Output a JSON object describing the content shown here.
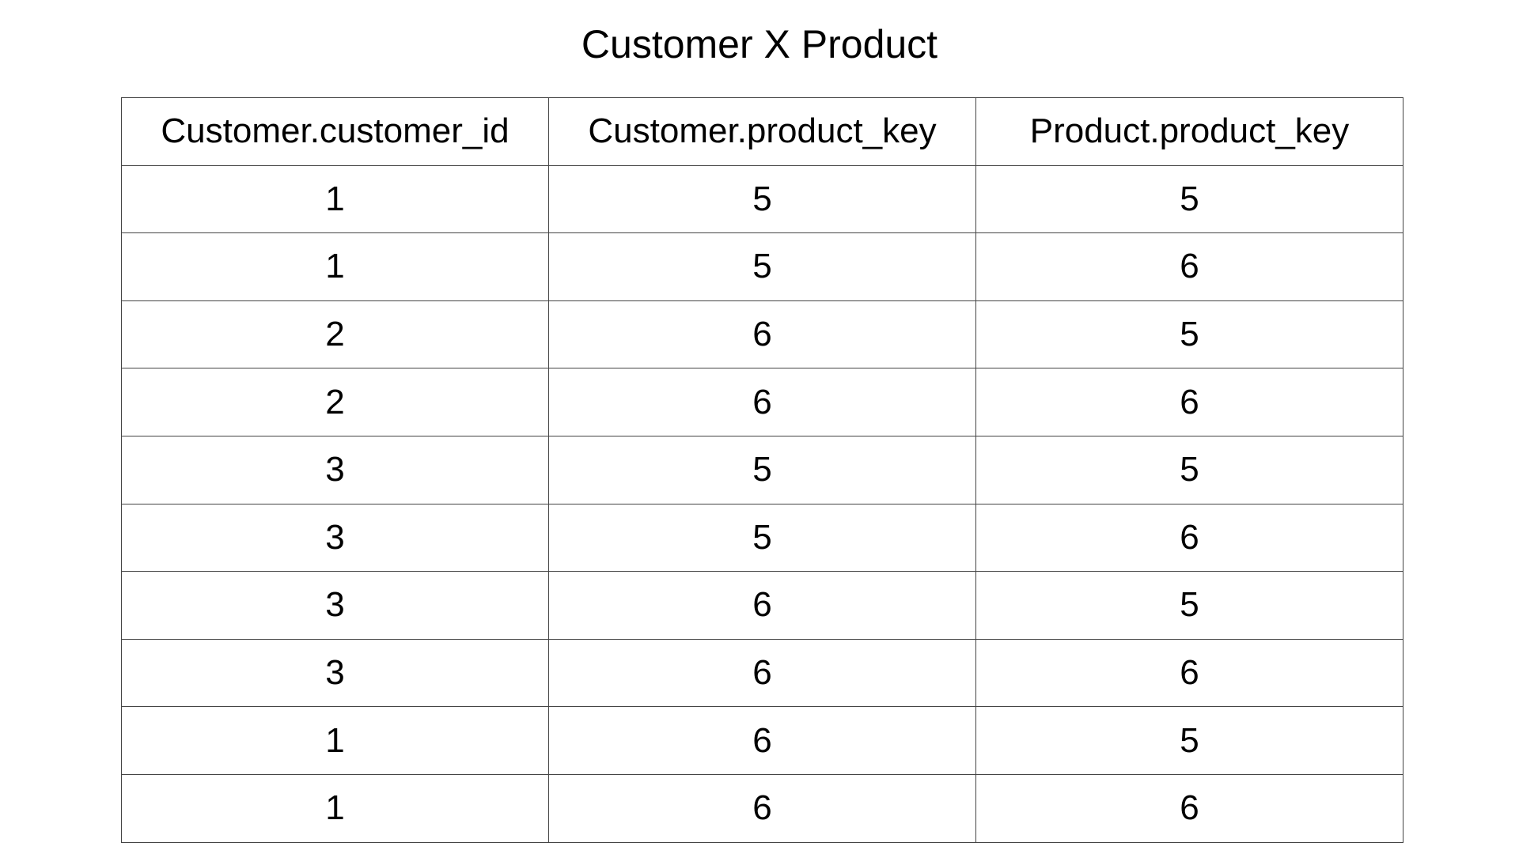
{
  "title": "Customer X Product",
  "table": {
    "headers": [
      "Customer.customer_id",
      "Customer.product_key",
      "Product.product_key"
    ],
    "rows": [
      [
        "1",
        "5",
        "5"
      ],
      [
        "1",
        "5",
        "6"
      ],
      [
        "2",
        "6",
        "5"
      ],
      [
        "2",
        "6",
        "6"
      ],
      [
        "3",
        "5",
        "5"
      ],
      [
        "3",
        "5",
        "6"
      ],
      [
        "3",
        "6",
        "5"
      ],
      [
        "3",
        "6",
        "6"
      ],
      [
        "1",
        "6",
        "5"
      ],
      [
        "1",
        "6",
        "6"
      ]
    ]
  }
}
